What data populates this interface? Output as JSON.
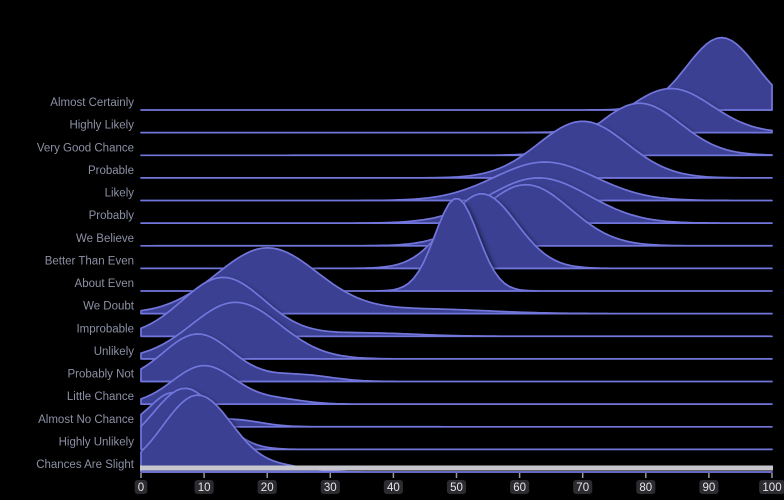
{
  "colors": {
    "background": "#000000",
    "fill": "#3A3F93",
    "outline": "#7276DB",
    "baseline": "#A3A6B8",
    "axis_bar": "#C6C6CC",
    "tick_mark": "#9A9AA0",
    "tick_label": "#E6E6EA",
    "tick_pill": "#2B2B30",
    "category_label": "#8C90A4"
  },
  "chart_data": {
    "type": "area",
    "variant": "ridgeline",
    "title": "",
    "xlabel": "",
    "ylabel": "",
    "xlim": [
      0,
      100
    ],
    "x_ticks": [
      0,
      10,
      20,
      30,
      40,
      50,
      60,
      70,
      80,
      90,
      100
    ],
    "grid": false,
    "legend": false,
    "amp_unit": "row_heights",
    "categories": [
      "Almost Certainly",
      "Highly Likely",
      "Very Good Chance",
      "Probable",
      "Likely",
      "Probably",
      "We Believe",
      "Better Than Even",
      "About Even",
      "We Doubt",
      "Improbable",
      "Unlikely",
      "Probably Not",
      "Little Chance",
      "Almost No Chance",
      "Highly Unlikely",
      "Chances Are Slight"
    ],
    "series": [
      {
        "name": "Almost Certainly",
        "components": [
          {
            "mode": 92,
            "sd": 5.5,
            "amp": 3.2
          }
        ]
      },
      {
        "name": "Highly Likely",
        "components": [
          {
            "mode": 84,
            "sd": 6.5,
            "amp": 1.95
          }
        ]
      },
      {
        "name": "Very Good Chance",
        "components": [
          {
            "mode": 79,
            "sd": 6.5,
            "amp": 2.3
          }
        ]
      },
      {
        "name": "Probable",
        "components": [
          {
            "mode": 70,
            "sd": 7.0,
            "amp": 2.5
          }
        ]
      },
      {
        "name": "Likely",
        "components": [
          {
            "mode": 64,
            "sd": 8.0,
            "amp": 1.7
          }
        ]
      },
      {
        "name": "Probably",
        "components": [
          {
            "mode": 63,
            "sd": 8.0,
            "amp": 2.0
          }
        ]
      },
      {
        "name": "We Believe",
        "components": [
          {
            "mode": 61,
            "sd": 7.0,
            "amp": 2.7
          }
        ]
      },
      {
        "name": "Better Than Even",
        "components": [
          {
            "mode": 54,
            "sd": 5.5,
            "amp": 3.3
          }
        ]
      },
      {
        "name": "About Even",
        "components": [
          {
            "mode": 50,
            "sd": 3.4,
            "amp": 4.1
          }
        ]
      },
      {
        "name": "We Doubt",
        "components": [
          {
            "mode": 20,
            "sd": 8.0,
            "amp": 2.9
          },
          {
            "mode": 45,
            "sd": 10,
            "amp": 0.2
          }
        ]
      },
      {
        "name": "Improbable",
        "components": [
          {
            "mode": 13,
            "sd": 6.5,
            "amp": 2.6
          },
          {
            "mode": 35,
            "sd": 8,
            "amp": 0.15
          }
        ]
      },
      {
        "name": "Unlikely",
        "components": [
          {
            "mode": 15,
            "sd": 7.0,
            "amp": 2.5
          }
        ]
      },
      {
        "name": "Probably Not",
        "components": [
          {
            "mode": 9,
            "sd": 5.5,
            "amp": 2.1
          },
          {
            "mode": 25,
            "sd": 5,
            "amp": 0.3
          }
        ]
      },
      {
        "name": "Little Chance",
        "components": [
          {
            "mode": 10,
            "sd": 5.0,
            "amp": 1.7
          },
          {
            "mode": 22,
            "sd": 4,
            "amp": 0.2
          }
        ]
      },
      {
        "name": "Almost No Chance",
        "components": [
          {
            "mode": 5,
            "sd": 3.5,
            "amp": 1.5
          },
          {
            "mode": 15,
            "sd": 4,
            "amp": 0.3
          }
        ]
      },
      {
        "name": "Highly Unlikely",
        "components": [
          {
            "mode": 7,
            "sd": 5.0,
            "amp": 2.7
          }
        ]
      },
      {
        "name": "Chances Are Slight",
        "components": [
          {
            "mode": 9,
            "sd": 5.5,
            "amp": 3.4
          },
          {
            "mode": 23,
            "sd": 4,
            "amp": 0.2
          }
        ]
      }
    ]
  }
}
